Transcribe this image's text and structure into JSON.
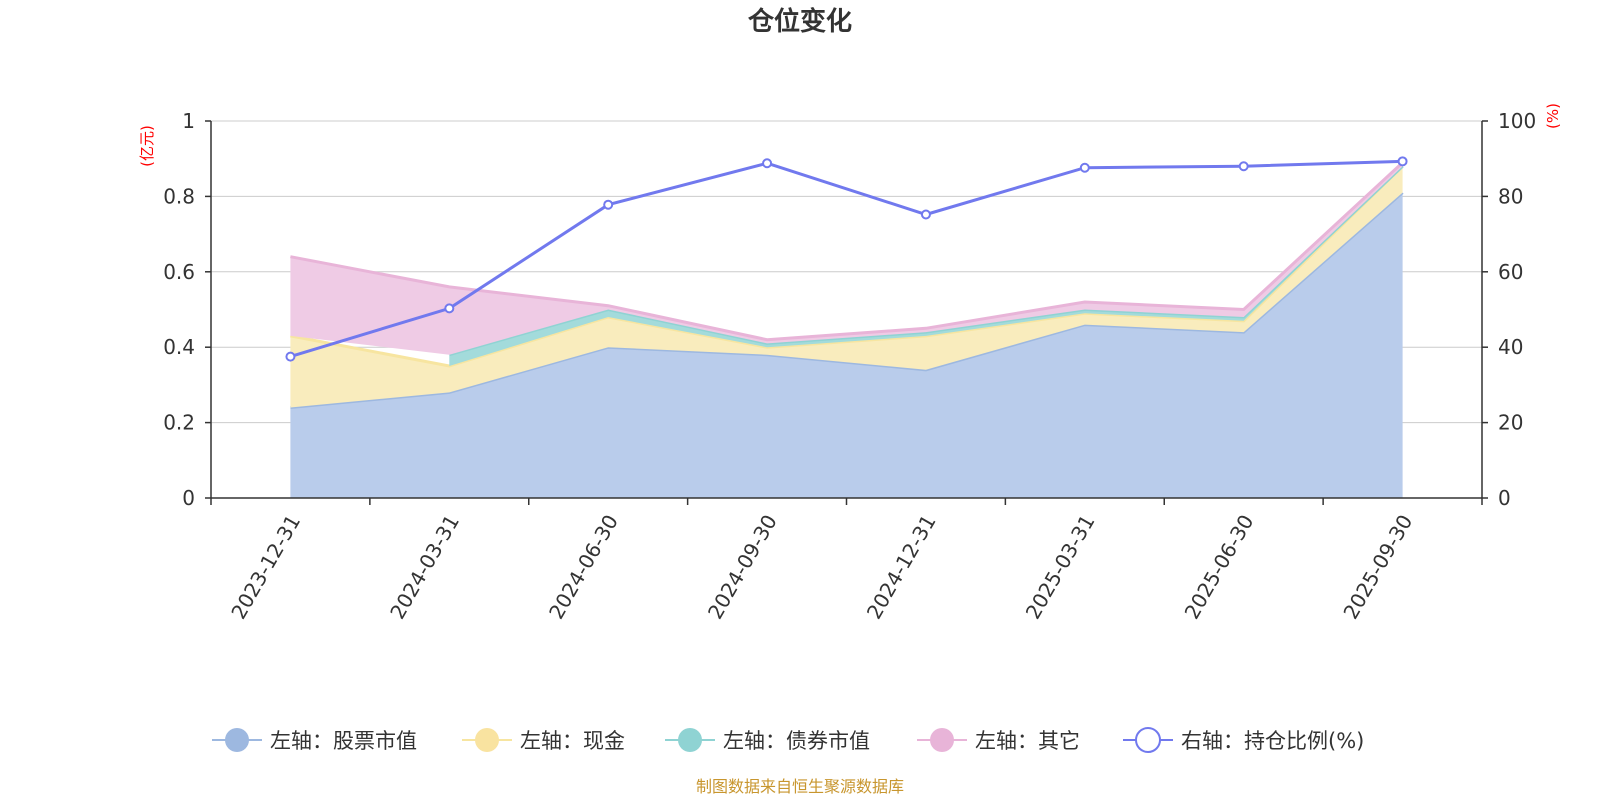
{
  "chart_data": {
    "type": "area",
    "title": "仓位变化",
    "categories": [
      "2023-12-31",
      "2024-03-31",
      "2024-06-30",
      "2024-09-30",
      "2024-12-31",
      "2025-03-31",
      "2025-06-30",
      "2025-09-30"
    ],
    "left_axis": {
      "unit": "(亿元)",
      "ylim": [
        0,
        1
      ],
      "ticks": [
        "0",
        "0.2",
        "0.4",
        "0.6",
        "0.8",
        "1"
      ]
    },
    "right_axis": {
      "unit": "(%)",
      "ylim": [
        0,
        100
      ],
      "ticks": [
        "0",
        "20",
        "40",
        "60",
        "80",
        "100"
      ]
    },
    "series": [
      {
        "name": "左轴：股票市值",
        "axis": "left",
        "stacked": true,
        "color": "#9db8e0",
        "fill": "#b9cceb",
        "values": [
          0.24,
          0.28,
          0.4,
          0.38,
          0.34,
          0.46,
          0.44,
          0.81
        ]
      },
      {
        "name": "左轴：现金",
        "axis": "left",
        "stacked": true,
        "color": "#f7e5a0",
        "fill": "#f9ecbd",
        "values": [
          0.19,
          0.07,
          0.08,
          0.02,
          0.09,
          0.03,
          0.03,
          0.07
        ]
      },
      {
        "name": "左轴：债券市值",
        "axis": "left",
        "stacked": true,
        "color": "#8fd3d3",
        "fill": "#a3dbdb",
        "values": [
          0.0,
          0.03,
          0.02,
          0.01,
          0.01,
          0.01,
          0.01,
          0.0
        ]
      },
      {
        "name": "左轴：其它",
        "axis": "left",
        "stacked": true,
        "color": "#e8b4d8",
        "fill": "#efcbe5",
        "values": [
          0.21,
          0.18,
          0.01,
          0.01,
          0.01,
          0.02,
          0.02,
          0.01
        ]
      },
      {
        "name": "右轴：持仓比例(%)",
        "axis": "right",
        "type": "line",
        "color": "#7179ee",
        "values": [
          37.5,
          50.3,
          77.8,
          88.8,
          75.2,
          87.6,
          88.0,
          89.3
        ]
      }
    ],
    "legend_position": "bottom",
    "grid": true
  },
  "footer": {
    "source": "制图数据来自恒生聚源数据库"
  }
}
